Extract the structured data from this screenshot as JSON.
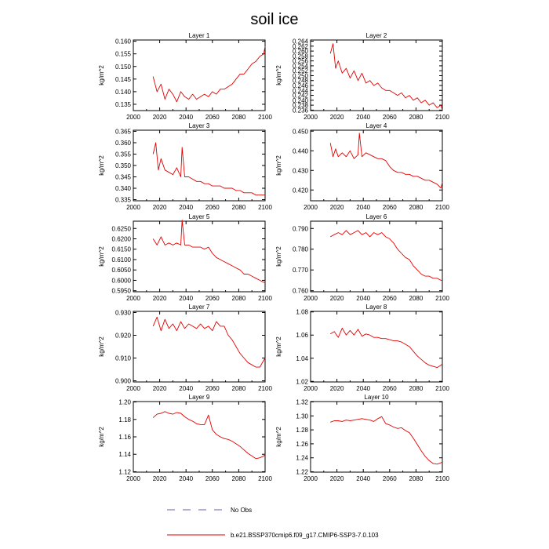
{
  "figure": {
    "title": "soil ice",
    "legend": [
      {
        "label": "No Obs",
        "color": "#6b5fa8",
        "style": "dashed"
      },
      {
        "label": "b.e21.BSSP370cmip6.f09_g17.CMIP6-SSP3-7.0.103",
        "color": "#e60000",
        "style": "solid"
      }
    ]
  },
  "chart_data": [
    {
      "type": "line",
      "title": "Layer 1",
      "xlabel": "",
      "ylabel": "kg/m^2",
      "xlim": [
        2000,
        2100
      ],
      "ylim": [
        0.1325,
        0.1605
      ],
      "xticks": [
        2000,
        2020,
        2040,
        2060,
        2080,
        2100
      ],
      "yticks": [
        0.135,
        0.14,
        0.145,
        0.15,
        0.155,
        0.16
      ],
      "ytick_labels": [
        "0.135",
        "0.140",
        "0.145",
        "0.150",
        "0.155",
        "0.160"
      ],
      "series": [
        {
          "color": "#e60000",
          "x": [
            2015,
            2018,
            2021,
            2024,
            2027,
            2030,
            2033,
            2036,
            2039,
            2042,
            2045,
            2048,
            2051,
            2054,
            2057,
            2060,
            2063,
            2066,
            2069,
            2072,
            2075,
            2078,
            2081,
            2084,
            2087,
            2090,
            2093,
            2096,
            2099,
            2100
          ],
          "y": [
            0.146,
            0.14,
            0.143,
            0.137,
            0.141,
            0.139,
            0.136,
            0.14,
            0.138,
            0.137,
            0.139,
            0.137,
            0.138,
            0.139,
            0.138,
            0.14,
            0.139,
            0.141,
            0.141,
            0.142,
            0.143,
            0.145,
            0.147,
            0.147,
            0.149,
            0.151,
            0.152,
            0.154,
            0.155,
            0.158
          ]
        }
      ]
    },
    {
      "type": "line",
      "title": "Layer 2",
      "xlabel": "",
      "ylabel": "kg/m^2",
      "xlim": [
        2000,
        2100
      ],
      "ylim": [
        0.2358,
        0.2645
      ],
      "xticks": [
        2000,
        2020,
        2040,
        2060,
        2080,
        2100
      ],
      "yticks": [
        0.236,
        0.238,
        0.24,
        0.242,
        0.244,
        0.246,
        0.248,
        0.25,
        0.252,
        0.254,
        0.256,
        0.258,
        0.26,
        0.262,
        0.264
      ],
      "ytick_labels": [
        "0.236",
        "0.238",
        "0.240",
        "0.242",
        "0.244",
        "0.246",
        "0.248",
        "0.250",
        "0.252",
        "0.254",
        "0.256",
        "0.258",
        "0.260",
        "0.262",
        "0.264"
      ],
      "series": [
        {
          "color": "#e60000",
          "x": [
            2015,
            2017,
            2019,
            2021,
            2024,
            2027,
            2030,
            2033,
            2036,
            2039,
            2042,
            2045,
            2048,
            2051,
            2054,
            2057,
            2060,
            2063,
            2066,
            2069,
            2072,
            2075,
            2078,
            2081,
            2084,
            2087,
            2090,
            2093,
            2096,
            2099,
            2100
          ],
          "y": [
            0.259,
            0.263,
            0.253,
            0.256,
            0.251,
            0.253,
            0.249,
            0.252,
            0.248,
            0.251,
            0.247,
            0.248,
            0.246,
            0.247,
            0.245,
            0.244,
            0.244,
            0.243,
            0.242,
            0.243,
            0.241,
            0.242,
            0.24,
            0.241,
            0.239,
            0.24,
            0.238,
            0.239,
            0.237,
            0.238,
            0.236
          ]
        }
      ]
    },
    {
      "type": "line",
      "title": "Layer 3",
      "xlabel": "",
      "ylabel": "kg/m^2",
      "xlim": [
        2000,
        2100
      ],
      "ylim": [
        0.3345,
        0.3655
      ],
      "xticks": [
        2000,
        2020,
        2040,
        2060,
        2080,
        2100
      ],
      "yticks": [
        0.335,
        0.34,
        0.345,
        0.35,
        0.355,
        0.36,
        0.365
      ],
      "ytick_labels": [
        "0.335",
        "0.340",
        "0.345",
        "0.350",
        "0.355",
        "0.360",
        "0.365"
      ],
      "series": [
        {
          "color": "#e60000",
          "x": [
            2015,
            2017,
            2019,
            2021,
            2024,
            2027,
            2030,
            2033,
            2036,
            2037,
            2039,
            2042,
            2045,
            2048,
            2051,
            2054,
            2057,
            2060,
            2063,
            2066,
            2069,
            2072,
            2075,
            2078,
            2081,
            2084,
            2087,
            2090,
            2093,
            2096,
            2099,
            2100
          ],
          "y": [
            0.355,
            0.36,
            0.348,
            0.353,
            0.348,
            0.347,
            0.346,
            0.349,
            0.345,
            0.358,
            0.345,
            0.345,
            0.344,
            0.343,
            0.343,
            0.342,
            0.342,
            0.341,
            0.341,
            0.341,
            0.34,
            0.34,
            0.34,
            0.339,
            0.339,
            0.338,
            0.338,
            0.338,
            0.337,
            0.337,
            0.337,
            0.337
          ]
        }
      ]
    },
    {
      "type": "line",
      "title": "Layer 4",
      "xlabel": "",
      "ylabel": "kg/m^2",
      "xlim": [
        2000,
        2100
      ],
      "ylim": [
        0.4145,
        0.4505
      ],
      "xticks": [
        2000,
        2020,
        2040,
        2060,
        2080,
        2100
      ],
      "yticks": [
        0.42,
        0.43,
        0.44,
        0.45
      ],
      "ytick_labels": [
        "0.420",
        "0.430",
        "0.440",
        "0.450"
      ],
      "series": [
        {
          "color": "#e60000",
          "x": [
            2015,
            2017,
            2019,
            2021,
            2024,
            2027,
            2030,
            2033,
            2036,
            2037,
            2039,
            2042,
            2045,
            2048,
            2051,
            2054,
            2057,
            2060,
            2063,
            2066,
            2069,
            2072,
            2075,
            2078,
            2081,
            2084,
            2087,
            2090,
            2093,
            2096,
            2099,
            2100
          ],
          "y": [
            0.444,
            0.437,
            0.441,
            0.437,
            0.439,
            0.437,
            0.44,
            0.436,
            0.438,
            0.449,
            0.437,
            0.439,
            0.438,
            0.437,
            0.436,
            0.436,
            0.435,
            0.432,
            0.43,
            0.429,
            0.429,
            0.428,
            0.428,
            0.427,
            0.427,
            0.426,
            0.425,
            0.425,
            0.424,
            0.423,
            0.421,
            0.424
          ]
        }
      ]
    },
    {
      "type": "line",
      "title": "Layer 5",
      "xlabel": "",
      "ylabel": "kg/m^2",
      "xlim": [
        2000,
        2100
      ],
      "ylim": [
        0.5945,
        0.6285
      ],
      "xticks": [
        2000,
        2020,
        2040,
        2060,
        2080,
        2100
      ],
      "yticks": [
        0.595,
        0.6,
        0.605,
        0.61,
        0.615,
        0.62,
        0.625
      ],
      "ytick_labels": [
        "0.5950",
        "0.6000",
        "0.6050",
        "0.6100",
        "0.6150",
        "0.6200",
        "0.6250"
      ],
      "series": [
        {
          "color": "#e60000",
          "x": [
            2015,
            2018,
            2021,
            2024,
            2027,
            2030,
            2033,
            2036,
            2037,
            2039,
            2042,
            2045,
            2048,
            2051,
            2054,
            2057,
            2060,
            2063,
            2066,
            2069,
            2072,
            2075,
            2078,
            2081,
            2084,
            2087,
            2090,
            2093,
            2096,
            2099,
            2100
          ],
          "y": [
            0.62,
            0.617,
            0.621,
            0.617,
            0.618,
            0.617,
            0.618,
            0.617,
            0.629,
            0.617,
            0.617,
            0.616,
            0.616,
            0.616,
            0.615,
            0.616,
            0.613,
            0.611,
            0.61,
            0.609,
            0.608,
            0.607,
            0.606,
            0.605,
            0.603,
            0.603,
            0.602,
            0.601,
            0.6,
            0.599,
            0.599
          ]
        }
      ]
    },
    {
      "type": "line",
      "title": "Layer 6",
      "xlabel": "",
      "ylabel": "kg/m^2",
      "xlim": [
        2000,
        2100
      ],
      "ylim": [
        0.7595,
        0.7935
      ],
      "xticks": [
        2000,
        2020,
        2040,
        2060,
        2080,
        2100
      ],
      "yticks": [
        0.76,
        0.77,
        0.78,
        0.79
      ],
      "ytick_labels": [
        "0.760",
        "0.770",
        "0.780",
        "0.790"
      ],
      "series": [
        {
          "color": "#e60000",
          "x": [
            2015,
            2018,
            2021,
            2024,
            2027,
            2030,
            2033,
            2036,
            2039,
            2042,
            2045,
            2048,
            2051,
            2054,
            2057,
            2060,
            2063,
            2066,
            2069,
            2072,
            2075,
            2078,
            2081,
            2084,
            2087,
            2090,
            2093,
            2096,
            2099,
            2100
          ],
          "y": [
            0.786,
            0.787,
            0.788,
            0.787,
            0.789,
            0.787,
            0.788,
            0.789,
            0.787,
            0.788,
            0.786,
            0.788,
            0.787,
            0.788,
            0.786,
            0.785,
            0.783,
            0.78,
            0.778,
            0.776,
            0.775,
            0.772,
            0.77,
            0.768,
            0.767,
            0.767,
            0.766,
            0.766,
            0.765,
            0.765
          ]
        }
      ]
    },
    {
      "type": "line",
      "title": "Layer 7",
      "xlabel": "",
      "ylabel": "kg/m^2",
      "xlim": [
        2000,
        2100
      ],
      "ylim": [
        0.8995,
        0.9305
      ],
      "xticks": [
        2000,
        2020,
        2040,
        2060,
        2080,
        2100
      ],
      "yticks": [
        0.9,
        0.91,
        0.92,
        0.93
      ],
      "ytick_labels": [
        "0.900",
        "0.910",
        "0.920",
        "0.930"
      ],
      "series": [
        {
          "color": "#e60000",
          "x": [
            2015,
            2018,
            2021,
            2024,
            2027,
            2030,
            2033,
            2036,
            2039,
            2042,
            2045,
            2048,
            2051,
            2054,
            2057,
            2060,
            2063,
            2066,
            2069,
            2072,
            2075,
            2078,
            2081,
            2084,
            2087,
            2090,
            2093,
            2096,
            2099,
            2100
          ],
          "y": [
            0.924,
            0.928,
            0.922,
            0.927,
            0.923,
            0.925,
            0.922,
            0.926,
            0.923,
            0.925,
            0.924,
            0.923,
            0.925,
            0.923,
            0.924,
            0.922,
            0.926,
            0.924,
            0.924,
            0.92,
            0.918,
            0.915,
            0.912,
            0.91,
            0.908,
            0.907,
            0.906,
            0.906,
            0.909,
            0.91
          ]
        }
      ]
    },
    {
      "type": "line",
      "title": "Layer 8",
      "xlabel": "",
      "ylabel": "kg/m^2",
      "xlim": [
        2000,
        2100
      ],
      "ylim": [
        1.0195,
        1.0805
      ],
      "xticks": [
        2000,
        2020,
        2040,
        2060,
        2080,
        2100
      ],
      "yticks": [
        1.02,
        1.04,
        1.06,
        1.08
      ],
      "ytick_labels": [
        "1.02",
        "1.04",
        "1.06",
        "1.08"
      ],
      "series": [
        {
          "color": "#e60000",
          "x": [
            2015,
            2018,
            2021,
            2024,
            2027,
            2030,
            2033,
            2036,
            2039,
            2042,
            2045,
            2048,
            2051,
            2054,
            2057,
            2060,
            2063,
            2066,
            2069,
            2072,
            2075,
            2078,
            2081,
            2084,
            2087,
            2090,
            2093,
            2096,
            2099,
            2100
          ],
          "y": [
            1.061,
            1.063,
            1.058,
            1.066,
            1.06,
            1.064,
            1.06,
            1.065,
            1.059,
            1.061,
            1.06,
            1.058,
            1.058,
            1.057,
            1.057,
            1.056,
            1.055,
            1.055,
            1.054,
            1.052,
            1.05,
            1.046,
            1.042,
            1.039,
            1.036,
            1.034,
            1.033,
            1.032,
            1.034,
            1.035
          ]
        }
      ]
    },
    {
      "type": "line",
      "title": "Layer 9",
      "xlabel": "",
      "ylabel": "kg/m^2",
      "xlim": [
        2000,
        2100
      ],
      "ylim": [
        1.1195,
        1.2005
      ],
      "xticks": [
        2000,
        2020,
        2040,
        2060,
        2080,
        2100
      ],
      "yticks": [
        1.12,
        1.14,
        1.16,
        1.18,
        1.2
      ],
      "ytick_labels": [
        "1.12",
        "1.14",
        "1.16",
        "1.18",
        "1.20"
      ],
      "series": [
        {
          "color": "#e60000",
          "x": [
            2015,
            2018,
            2021,
            2024,
            2027,
            2030,
            2033,
            2036,
            2039,
            2042,
            2045,
            2048,
            2051,
            2054,
            2057,
            2060,
            2063,
            2066,
            2069,
            2072,
            2075,
            2078,
            2081,
            2084,
            2087,
            2090,
            2093,
            2096,
            2099,
            2100
          ],
          "y": [
            1.182,
            1.186,
            1.187,
            1.189,
            1.187,
            1.186,
            1.188,
            1.187,
            1.183,
            1.18,
            1.178,
            1.175,
            1.174,
            1.174,
            1.185,
            1.168,
            1.163,
            1.16,
            1.158,
            1.157,
            1.155,
            1.152,
            1.149,
            1.145,
            1.141,
            1.138,
            1.135,
            1.136,
            1.138,
            1.14
          ]
        }
      ]
    },
    {
      "type": "line",
      "title": "Layer 10",
      "xlabel": "",
      "ylabel": "kg/m^2",
      "xlim": [
        2000,
        2100
      ],
      "ylim": [
        1.2195,
        1.3205
      ],
      "xticks": [
        2000,
        2020,
        2040,
        2060,
        2080,
        2100
      ],
      "yticks": [
        1.22,
        1.24,
        1.26,
        1.28,
        1.3,
        1.32
      ],
      "ytick_labels": [
        "1.22",
        "1.24",
        "1.26",
        "1.28",
        "1.30",
        "1.32"
      ],
      "series": [
        {
          "color": "#e60000",
          "x": [
            2015,
            2018,
            2021,
            2024,
            2027,
            2030,
            2033,
            2036,
            2039,
            2042,
            2045,
            2048,
            2051,
            2054,
            2057,
            2060,
            2063,
            2066,
            2069,
            2072,
            2075,
            2078,
            2081,
            2084,
            2087,
            2090,
            2093,
            2096,
            2099,
            2100
          ],
          "y": [
            1.291,
            1.293,
            1.293,
            1.292,
            1.294,
            1.293,
            1.294,
            1.295,
            1.296,
            1.295,
            1.294,
            1.292,
            1.296,
            1.299,
            1.289,
            1.287,
            1.284,
            1.282,
            1.283,
            1.279,
            1.276,
            1.268,
            1.259,
            1.25,
            1.242,
            1.236,
            1.232,
            1.231,
            1.233,
            1.234
          ]
        }
      ]
    }
  ]
}
